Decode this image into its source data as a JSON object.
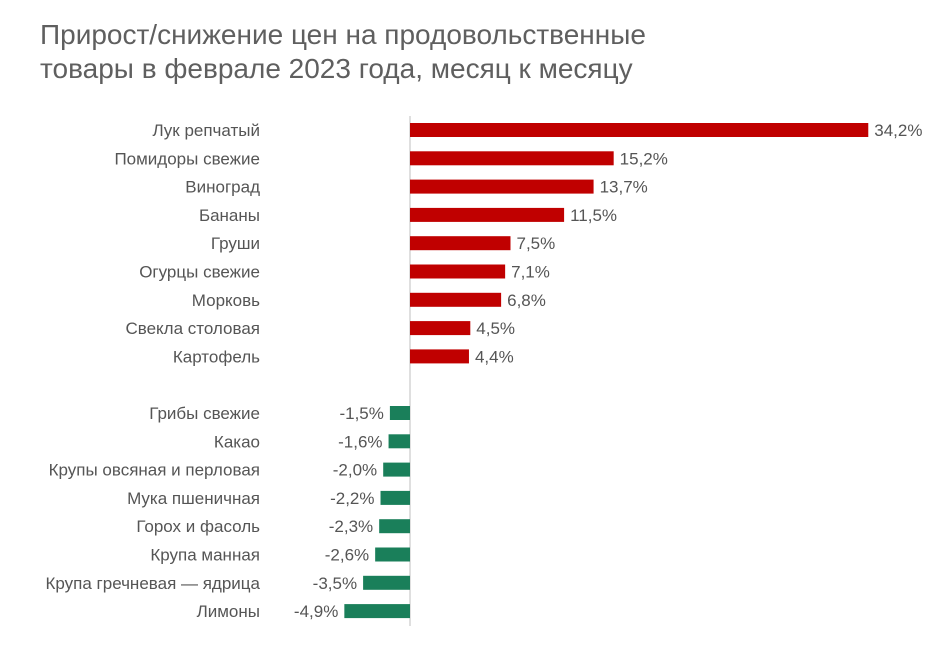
{
  "title_lines": [
    "Прирост/снижение цен на продовольственные",
    "товары в феврале 2023 года, месяц к месяцу"
  ],
  "colors": {
    "positive": "#c00000",
    "negative": "#1a7f5a",
    "axis": "#bfbfbf",
    "text": "#555555"
  },
  "chart_data": {
    "type": "bar",
    "orientation": "horizontal",
    "title": "Прирост/снижение цен на продовольственные товары в феврале 2023 года, месяц к месяцу",
    "value_unit": "%",
    "grid": false,
    "legend": "none",
    "groups": [
      {
        "categories": [
          "Лук репчатый",
          "Помидоры свежие",
          "Виноград",
          "Бананы",
          "Груши",
          "Огурцы свежие",
          "Морковь",
          "Свекла столовая",
          "Картофель"
        ],
        "values": [
          34.2,
          15.2,
          13.7,
          11.5,
          7.5,
          7.1,
          6.8,
          4.5,
          4.4
        ],
        "labels": [
          "34,2%",
          "15,2%",
          "13,7%",
          "11,5%",
          "7,5%",
          "7,1%",
          "6,8%",
          "4,5%",
          "4,4%"
        ]
      },
      {
        "categories": [
          "Грибы свежие",
          "Какао",
          "Крупы овсяная и перловая",
          "Мука пшеничная",
          "Горох и фасоль",
          "Крупа манная",
          "Крупа гречневая — ядрица",
          "Лимоны"
        ],
        "values": [
          -1.5,
          -1.6,
          -2.0,
          -2.2,
          -2.3,
          -2.6,
          -3.5,
          -4.9
        ],
        "labels": [
          "-1,5%",
          "-1,6%",
          "-2,0%",
          "-2,2%",
          "-2,3%",
          "-2,6%",
          "-3,5%",
          "-4,9%"
        ]
      }
    ]
  }
}
